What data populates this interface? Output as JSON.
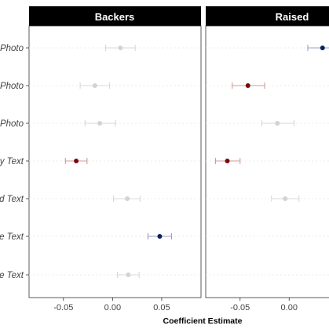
{
  "chart_data": {
    "type": "scatter",
    "xlabel": "Coefficient Estimate",
    "y_labels": [
      "Photo",
      "Photo",
      "Photo",
      "y Text",
      "d Text",
      "e Text",
      "e Text"
    ],
    "x_ticks": [
      "-0.05",
      "0.00",
      "0.05"
    ],
    "panels": [
      {
        "title": "Backers",
        "xlim": [
          -0.085,
          0.09
        ],
        "points": [
          {
            "row": 0,
            "est": 0.008,
            "lo": -0.007,
            "hi": 0.023,
            "color": "#d3d3d3"
          },
          {
            "row": 1,
            "est": -0.018,
            "lo": -0.033,
            "hi": -0.003,
            "color": "#d3d3d3"
          },
          {
            "row": 2,
            "est": -0.013,
            "lo": -0.028,
            "hi": 0.003,
            "color": "#d3d3d3"
          },
          {
            "row": 3,
            "est": -0.037,
            "lo": -0.048,
            "hi": -0.026,
            "color": "#7a0a0a"
          },
          {
            "row": 4,
            "est": 0.015,
            "lo": 0.001,
            "hi": 0.028,
            "color": "#d3d3d3"
          },
          {
            "row": 5,
            "est": 0.048,
            "lo": 0.036,
            "hi": 0.06,
            "color": "#0a1f5e"
          },
          {
            "row": 6,
            "est": 0.016,
            "lo": 0.005,
            "hi": 0.027,
            "color": "#d3d3d3"
          }
        ]
      },
      {
        "title": "Raised",
        "xlim": [
          -0.085,
          0.043
        ],
        "points": [
          {
            "row": 0,
            "est": 0.034,
            "lo": 0.019,
            "hi": 0.045,
            "color": "#0a1f5e"
          },
          {
            "row": 1,
            "est": -0.042,
            "lo": -0.058,
            "hi": -0.025,
            "color": "#7a0a0a"
          },
          {
            "row": 2,
            "est": -0.012,
            "lo": -0.028,
            "hi": 0.005,
            "color": "#d3d3d3"
          },
          {
            "row": 3,
            "est": -0.063,
            "lo": -0.075,
            "hi": -0.05,
            "color": "#7a0a0a"
          },
          {
            "row": 4,
            "est": -0.004,
            "lo": -0.018,
            "hi": 0.01,
            "color": "#d3d3d3"
          }
        ]
      }
    ],
    "gridlines": true
  },
  "colors": {
    "strip_bg": "#000000",
    "gridline": "#ebebeb",
    "gray_point": "#d3d3d3",
    "negative_sig": "#7a0a0a",
    "positive_sig": "#0a1f5e",
    "error_bar": "#d8d8d8",
    "error_bar_neg": "#d49a9a",
    "error_bar_pos": "#9aa0c8"
  }
}
